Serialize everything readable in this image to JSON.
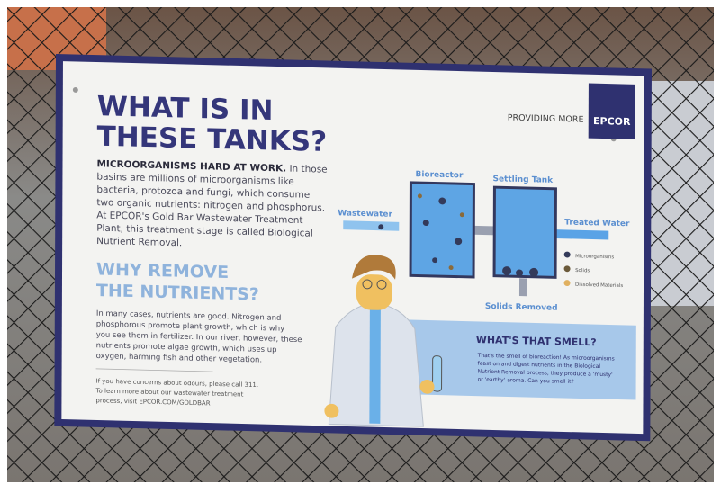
{
  "sign": {
    "title": [
      "WHAT IS IN",
      "THESE TANKS?"
    ],
    "brand": {
      "tagline": "PROVIDING MORE",
      "logo": "EPCOR"
    },
    "intro": {
      "lead": "MICROORGANISMS HARD AT WORK.",
      "lines": [
        "In those",
        "basins are millions of microorganisms like",
        "bacteria, protozoa and fungi, which consume",
        "two organic nutrients: nitrogen and phosphorus.",
        "At EPCOR's Gold Bar Wastewater Treatment",
        "Plant, this treatment stage is called Biological",
        "Nutrient Removal."
      ]
    },
    "why": {
      "heading": [
        "WHY REMOVE",
        "THE NUTRIENTS?"
      ],
      "lines": [
        "In many cases, nutrients are good. Nitrogen and",
        "phosphorous promote plant growth, which is why",
        "you see them in fertilizer. In our river, however, these",
        "nutrients promote algae growth, which uses up",
        "oxygen, harming fish and other vegetation."
      ]
    },
    "contact": [
      "If you have concerns about odours, please call 311.",
      "To learn more about our wastewater treatment",
      "process, visit EPCOR.COM/GOLDBAR"
    ],
    "diagram": {
      "bioreactor": "Bioreactor",
      "settling": "Settling Tank",
      "inflow": "Wastewater",
      "outflow": "Treated Water",
      "solids": "Solids Removed",
      "legend": [
        "Microorganisms",
        "Solids",
        "Dissolved Materials"
      ]
    },
    "smell": {
      "heading": "WHAT'S THAT SMELL?",
      "lines": [
        "That's the smell of bioreaction! As microorganisms",
        "feast on and digest nutrients in the Biological",
        "Nutrient Removal process, they produce a 'musty'",
        "or 'earthy' aroma. Can you smell it?"
      ]
    }
  }
}
